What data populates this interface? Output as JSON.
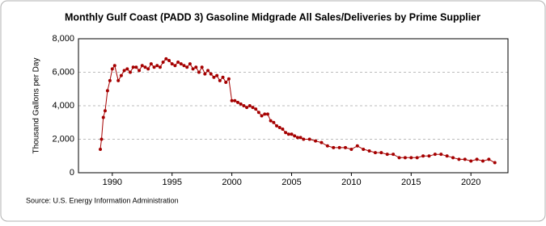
{
  "chart_data": {
    "type": "line",
    "title": "Monthly Gulf Coast (PADD 3) Gasoline Midgrade All Sales/Deliveries by Prime Supplier",
    "y_label": "Thousand Gallons per Day",
    "source": "Source: U.S. Energy Information Administration",
    "color": "#a50000",
    "grid": true,
    "xlim": [
      1987.17,
      2023.1
    ],
    "xticks": [
      1990,
      1995,
      2000,
      2005,
      2010,
      2015,
      2020
    ],
    "ylim": [
      0,
      8000
    ],
    "yticks": [
      0,
      {
        "value": 2000,
        "label": "2,000"
      },
      {
        "value": 4000,
        "label": "4,000"
      },
      {
        "value": 6000,
        "label": "6,000"
      },
      {
        "value": 8000,
        "label": "8,000"
      }
    ],
    "x": [
      1989.0,
      1989.1,
      1989.25,
      1989.4,
      1989.6,
      1989.8,
      1990.0,
      1990.2,
      1990.5,
      1990.75,
      1991.0,
      1991.25,
      1991.5,
      1991.75,
      1992.0,
      1992.25,
      1992.5,
      1992.75,
      1993.0,
      1993.25,
      1993.5,
      1993.75,
      1994.0,
      1994.25,
      1994.5,
      1994.75,
      1995.0,
      1995.25,
      1995.5,
      1995.75,
      1996.0,
      1996.25,
      1996.5,
      1996.75,
      1997.0,
      1997.25,
      1997.5,
      1997.75,
      1998.0,
      1998.25,
      1998.5,
      1998.75,
      1999.0,
      1999.25,
      1999.5,
      1999.75,
      2000.0,
      2000.25,
      2000.5,
      2000.75,
      2001.0,
      2001.25,
      2001.5,
      2001.75,
      2002.0,
      2002.25,
      2002.5,
      2002.75,
      2003.0,
      2003.25,
      2003.5,
      2003.75,
      2004.0,
      2004.25,
      2004.5,
      2004.75,
      2005.0,
      2005.25,
      2005.5,
      2005.75,
      2006.0,
      2006.5,
      2007.0,
      2007.5,
      2008.0,
      2008.5,
      2009.0,
      2009.5,
      2010.0,
      2010.5,
      2011.0,
      2011.5,
      2012.0,
      2012.5,
      2013.0,
      2013.5,
      2014.0,
      2014.5,
      2015.0,
      2015.5,
      2016.0,
      2016.5,
      2017.0,
      2017.5,
      2018.0,
      2018.5,
      2019.0,
      2019.5,
      2020.0,
      2020.5,
      2021.0,
      2021.5,
      2022.0
    ],
    "values": [
      1400,
      2000,
      3300,
      3700,
      4900,
      5500,
      6200,
      6400,
      5500,
      5800,
      6100,
      6200,
      6000,
      6300,
      6300,
      6100,
      6400,
      6300,
      6200,
      6500,
      6300,
      6400,
      6300,
      6600,
      6800,
      6700,
      6500,
      6400,
      6600,
      6500,
      6400,
      6300,
      6500,
      6200,
      6300,
      6000,
      6300,
      5900,
      6100,
      5900,
      5700,
      5800,
      5500,
      5700,
      5400,
      5600,
      4300,
      4300,
      4200,
      4100,
      4000,
      3900,
      4000,
      3900,
      3800,
      3600,
      3400,
      3500,
      3500,
      3100,
      3000,
      2800,
      2700,
      2600,
      2400,
      2300,
      2300,
      2200,
      2100,
      2100,
      2000,
      2000,
      1900,
      1800,
      1600,
      1500,
      1500,
      1500,
      1400,
      1600,
      1400,
      1300,
      1200,
      1200,
      1100,
      1100,
      900,
      900,
      900,
      900,
      1000,
      1000,
      1100,
      1100,
      1000,
      900,
      800,
      800,
      700,
      800,
      700,
      800,
      600
    ]
  }
}
